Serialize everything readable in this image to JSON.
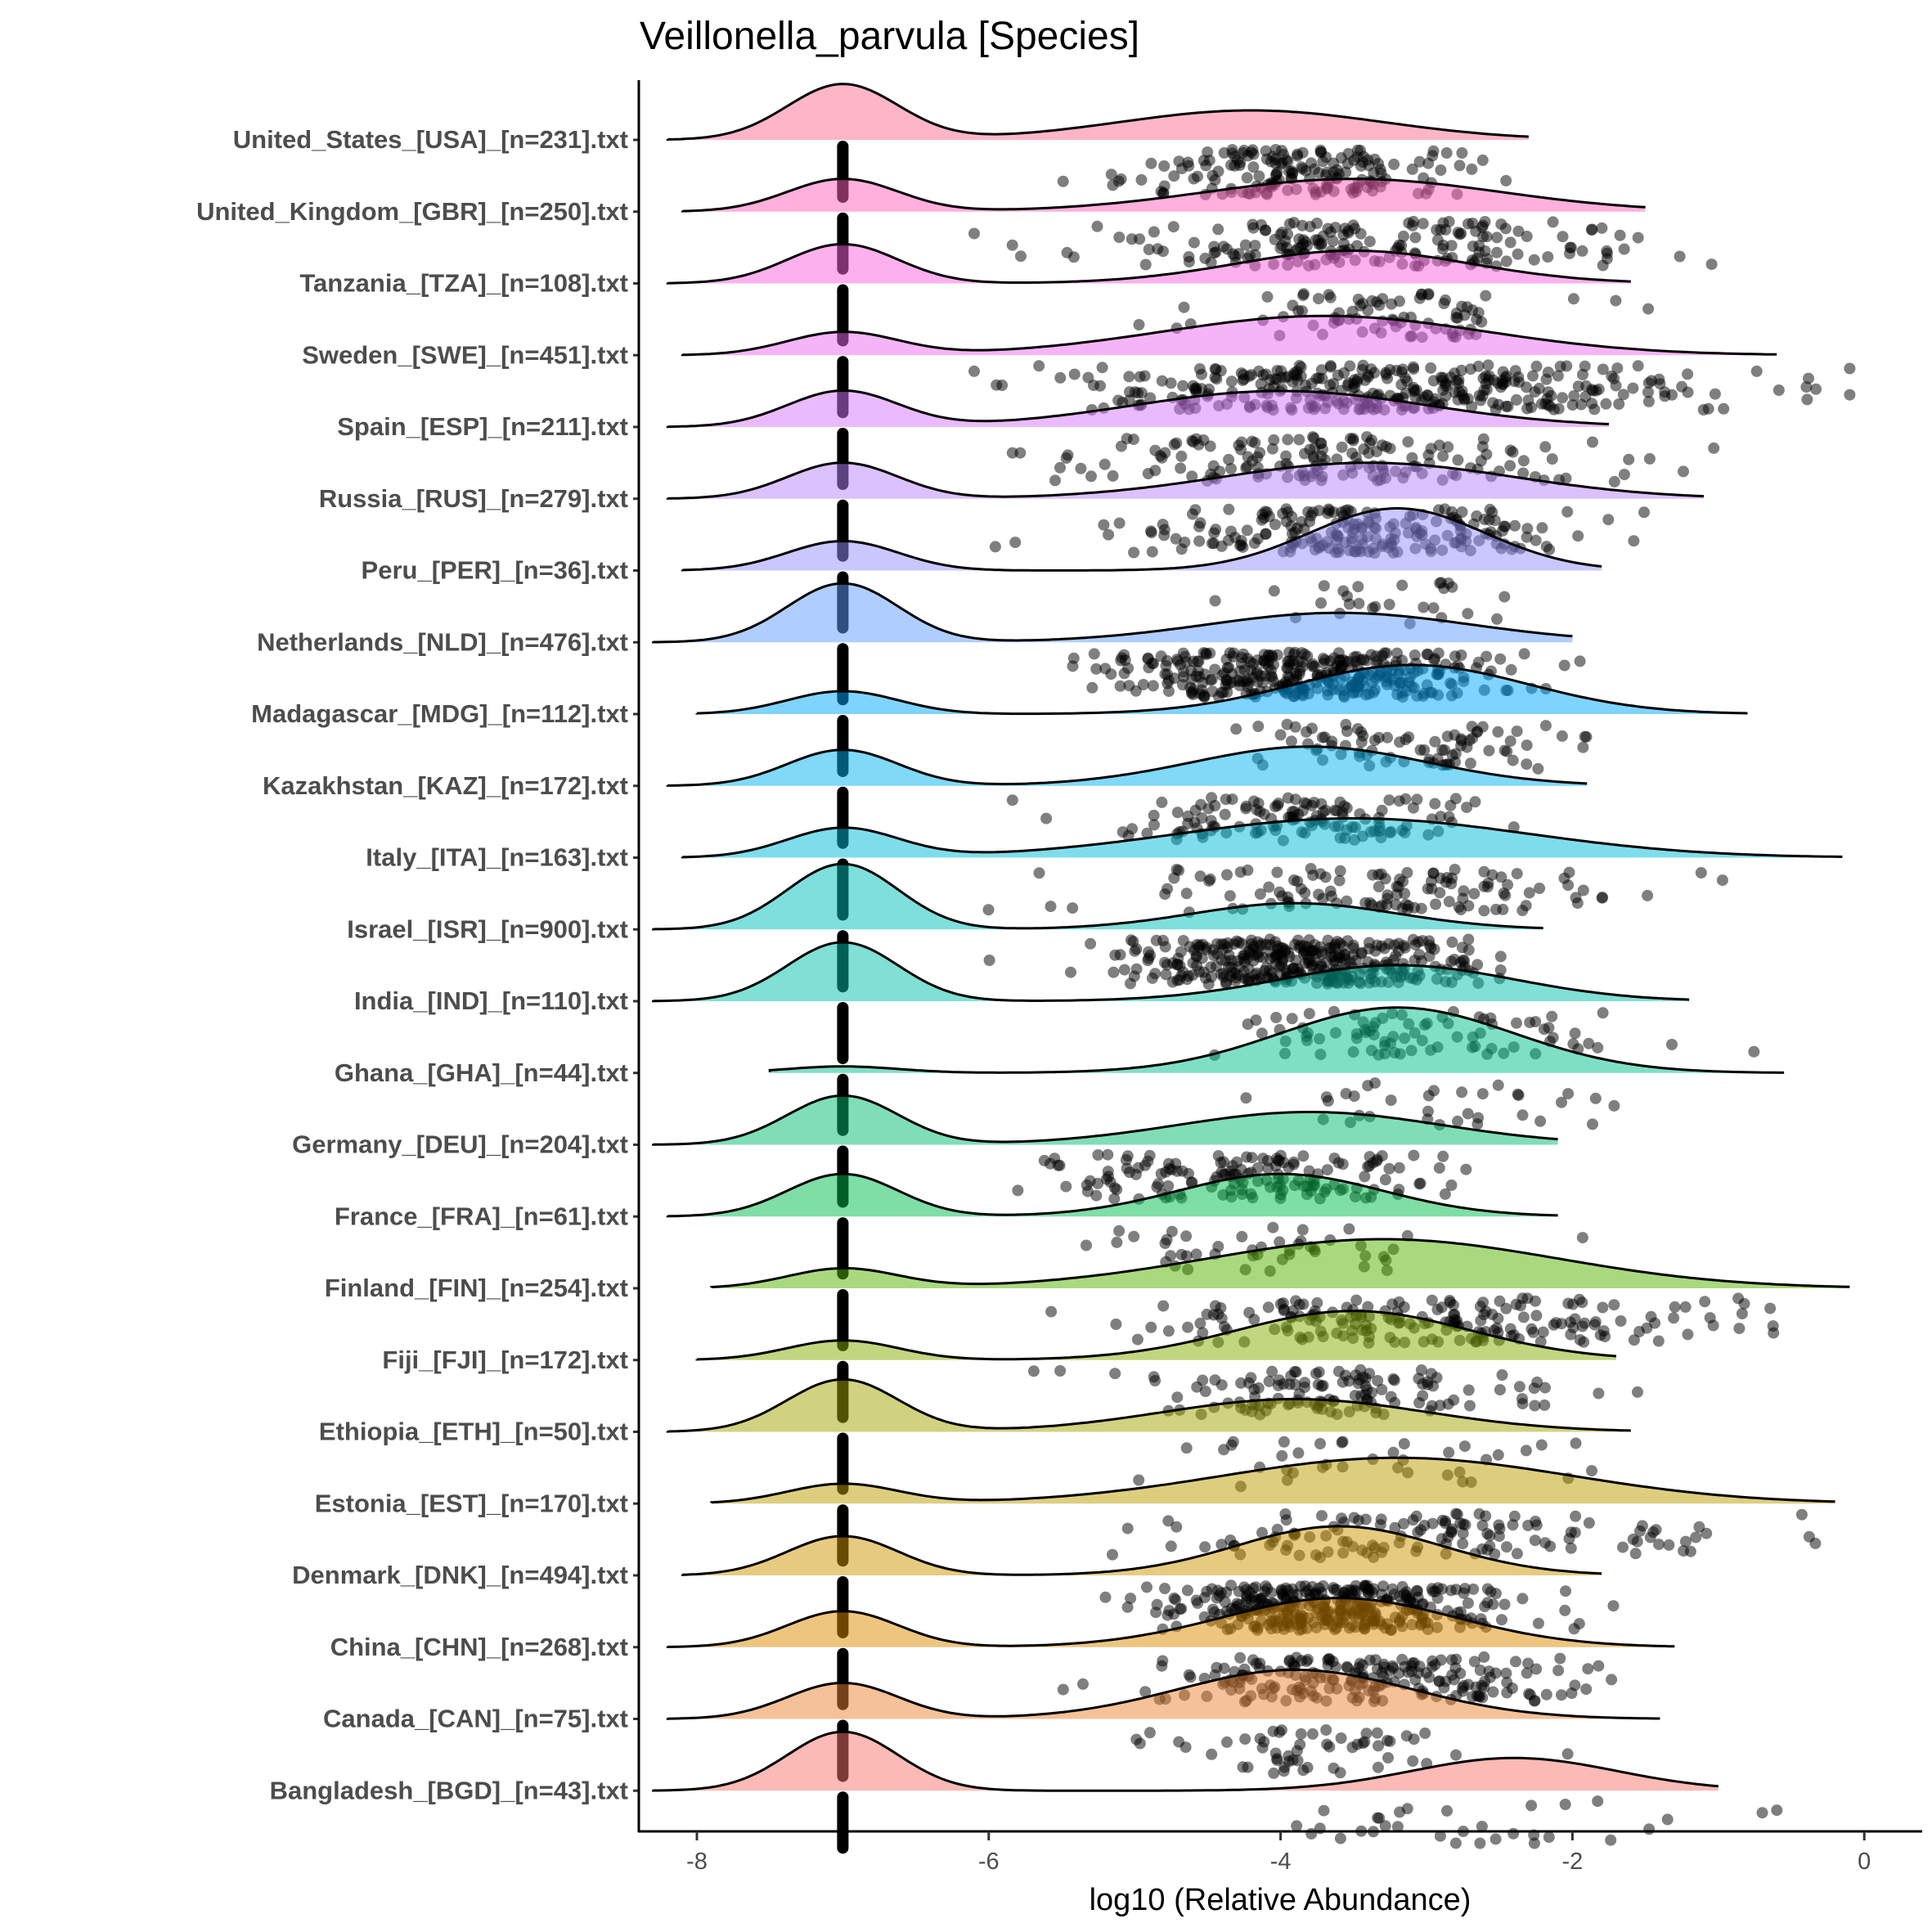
{
  "chart_data": {
    "type": "raincloud",
    "title": "Veillonella_parvula [Species]",
    "xlabel": "log10 (Relative Abundance)",
    "ylabel": "",
    "xlim": [
      -8.4,
      0.4
    ],
    "xticks": [
      -8,
      -6,
      -4,
      -2,
      0
    ],
    "xtick_labels": [
      "-8",
      "-6",
      "-4",
      "-2",
      "0"
    ],
    "zero_value": -7,
    "rows": [
      {
        "label": "United_States_[USA]_[n=231].txt",
        "n": 231,
        "color": "#FF6C91",
        "zero_h": 0.85,
        "main_h": 0.45,
        "main_mean": -4.2,
        "main_sd": 0.9,
        "range": [
          -8.2,
          -2.3
        ],
        "pts_mean": -3.9,
        "pts_sd": 0.6
      },
      {
        "label": "United_Kingdom_[GBR]_[n=250].txt",
        "n": 250,
        "color": "#FF62BC",
        "zero_h": 0.5,
        "main_h": 0.5,
        "main_mean": -3.5,
        "main_sd": 1.0,
        "range": [
          -8.1,
          -1.5
        ],
        "pts_mean": -3.5,
        "pts_sd": 0.9
      },
      {
        "label": "Tanzania_[TZA]_[n=108].txt",
        "n": 108,
        "color": "#FA62DB",
        "zero_h": 0.6,
        "main_h": 0.5,
        "main_mean": -3.5,
        "main_sd": 0.8,
        "range": [
          -8.2,
          -1.6
        ],
        "pts_mean": -3.3,
        "pts_sd": 0.6
      },
      {
        "label": "Sweden_[SWE]_[n=451].txt",
        "n": 451,
        "color": "#EC69EF",
        "zero_h": 0.35,
        "main_h": 0.6,
        "main_mean": -3.7,
        "main_sd": 1.1,
        "range": [
          -8.1,
          -0.6
        ],
        "pts_mean": -3.2,
        "pts_sd": 1.1
      },
      {
        "label": "Spain_[ESP]_[n=211].txt",
        "n": 211,
        "color": "#D575FE",
        "zero_h": 0.55,
        "main_h": 0.55,
        "main_mean": -4.0,
        "main_sd": 1.0,
        "range": [
          -8.2,
          -1.75
        ],
        "pts_mean": -3.8,
        "pts_sd": 0.9
      },
      {
        "label": "Russia_[RUS]_[n=279].txt",
        "n": 279,
        "color": "#B983FF",
        "zero_h": 0.55,
        "main_h": 0.55,
        "main_mean": -3.4,
        "main_sd": 1.0,
        "range": [
          -8.2,
          -1.1
        ],
        "pts_mean": -3.4,
        "pts_sd": 0.8
      },
      {
        "label": "Peru_[PER]_[n=36].txt",
        "n": 36,
        "color": "#9590FF",
        "zero_h": 0.45,
        "main_h": 0.95,
        "main_mean": -3.2,
        "main_sd": 0.6,
        "range": [
          -8.1,
          -1.8
        ],
        "pts_mean": -3.3,
        "pts_sd": 0.4
      },
      {
        "label": "Netherlands_[NLD]_[n=476].txt",
        "n": 476,
        "color": "#619CFF",
        "zero_h": 0.9,
        "main_h": 0.45,
        "main_mean": -3.6,
        "main_sd": 0.9,
        "range": [
          -8.3,
          -2.0
        ],
        "pts_mean": -3.8,
        "pts_sd": 0.7
      },
      {
        "label": "Madagascar_[MDG]_[n=112].txt",
        "n": 112,
        "color": "#00A9FF",
        "zero_h": 0.35,
        "main_h": 0.75,
        "main_mean": -3.1,
        "main_sd": 0.8,
        "range": [
          -8.0,
          -0.8
        ],
        "pts_mean": -3.0,
        "pts_sd": 0.6
      },
      {
        "label": "Kazakhstan_[KAZ]_[n=172].txt",
        "n": 172,
        "color": "#00B4EF",
        "zero_h": 0.55,
        "main_h": 0.6,
        "main_mean": -3.8,
        "main_sd": 0.8,
        "range": [
          -8.2,
          -1.9
        ],
        "pts_mean": -3.9,
        "pts_sd": 0.6
      },
      {
        "label": "Italy_[ITA]_[n=163].txt",
        "n": 163,
        "color": "#00BCD8",
        "zero_h": 0.45,
        "main_h": 0.6,
        "main_mean": -3.5,
        "main_sd": 1.2,
        "range": [
          -8.1,
          -0.15
        ],
        "pts_mean": -3.1,
        "pts_sd": 1.0
      },
      {
        "label": "Israel_[ISR]_[n=900].txt",
        "n": 900,
        "color": "#00C0BB",
        "zero_h": 1.0,
        "main_h": 0.4,
        "main_mean": -3.9,
        "main_sd": 0.7,
        "range": [
          -8.3,
          -2.2
        ],
        "pts_mean": -3.9,
        "pts_sd": 0.6
      },
      {
        "label": "India_[IND]_[n=110].txt",
        "n": 110,
        "color": "#00C1A7",
        "zero_h": 0.9,
        "main_h": 0.55,
        "main_mean": -3.2,
        "main_sd": 0.8,
        "range": [
          -8.3,
          -1.2
        ],
        "pts_mean": -3.0,
        "pts_sd": 0.7
      },
      {
        "label": "Ghana_[GHA]_[n=44].txt",
        "n": 44,
        "color": "#00C08B",
        "zero_h": 0.1,
        "main_h": 1.0,
        "main_mean": -3.2,
        "main_sd": 0.8,
        "range": [
          -7.5,
          -0.55
        ],
        "pts_mean": -3.0,
        "pts_sd": 0.7
      },
      {
        "label": "Germany_[DEU]_[n=204].txt",
        "n": 204,
        "color": "#00BE70",
        "zero_h": 0.75,
        "main_h": 0.5,
        "main_mean": -3.8,
        "main_sd": 0.9,
        "range": [
          -8.3,
          -2.1
        ],
        "pts_mean": -4.2,
        "pts_sd": 0.7
      },
      {
        "label": "France_[FRA]_[n=61].txt",
        "n": 61,
        "color": "#00BB4E",
        "zero_h": 0.65,
        "main_h": 0.65,
        "main_mean": -4.0,
        "main_sd": 0.7,
        "range": [
          -8.2,
          -2.1
        ],
        "pts_mean": -4.2,
        "pts_sd": 0.7
      },
      {
        "label": "Finland_[FIN]_[n=254].txt",
        "n": 254,
        "color": "#53B400",
        "zero_h": 0.3,
        "main_h": 0.75,
        "main_mean": -3.3,
        "main_sd": 1.2,
        "range": [
          -7.9,
          -0.1
        ],
        "pts_mean": -3.0,
        "pts_sd": 1.0
      },
      {
        "label": "Fiji_[FJI]_[n=172].txt",
        "n": 172,
        "color": "#85AD00",
        "zero_h": 0.3,
        "main_h": 0.75,
        "main_mean": -3.5,
        "main_sd": 0.8,
        "range": [
          -8.0,
          -1.7
        ],
        "pts_mean": -3.6,
        "pts_sd": 0.7
      },
      {
        "label": "Ethiopia_[ETH]_[n=50].txt",
        "n": 50,
        "color": "#A3A500",
        "zero_h": 0.8,
        "main_h": 0.5,
        "main_mean": -3.9,
        "main_sd": 0.9,
        "range": [
          -8.2,
          -1.6
        ],
        "pts_mean": -3.6,
        "pts_sd": 0.8
      },
      {
        "label": "Estonia_[EST]_[n=170].txt",
        "n": 170,
        "color": "#BB9D00",
        "zero_h": 0.3,
        "main_h": 0.7,
        "main_mean": -3.2,
        "main_sd": 1.2,
        "range": [
          -7.9,
          -0.2
        ],
        "pts_mean": -2.8,
        "pts_sd": 1.0
      },
      {
        "label": "Denmark_[DNK]_[n=494].txt",
        "n": 494,
        "color": "#CE9500",
        "zero_h": 0.6,
        "main_h": 0.75,
        "main_mean": -3.6,
        "main_sd": 0.7,
        "range": [
          -8.1,
          -1.8
        ],
        "pts_mean": -3.7,
        "pts_sd": 0.6
      },
      {
        "label": "China_[CHN]_[n=268].txt",
        "n": 268,
        "color": "#DE8C00",
        "zero_h": 0.55,
        "main_h": 0.75,
        "main_mean": -3.6,
        "main_sd": 0.8,
        "range": [
          -8.2,
          -1.3
        ],
        "pts_mean": -3.4,
        "pts_sd": 0.7
      },
      {
        "label": "Canada_[CAN]_[n=75].txt",
        "n": 75,
        "color": "#EA8331",
        "zero_h": 0.55,
        "main_h": 0.75,
        "main_mean": -3.9,
        "main_sd": 0.8,
        "range": [
          -8.2,
          -1.4
        ],
        "pts_mean": -3.8,
        "pts_sd": 0.6
      },
      {
        "label": "Bangladesh_[BGD]_[n=43].txt",
        "n": 43,
        "color": "#F8766D",
        "zero_h": 0.9,
        "main_h": 0.5,
        "main_mean": -2.4,
        "main_sd": 0.7,
        "range": [
          -8.3,
          -1.0
        ],
        "pts_mean": -2.6,
        "pts_sd": 0.8
      }
    ]
  }
}
